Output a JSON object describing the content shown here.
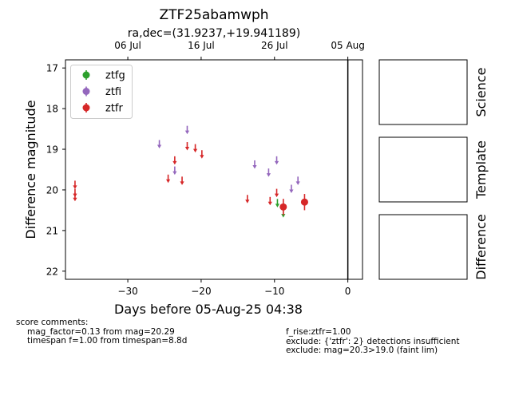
{
  "chart_data": {
    "type": "scatter",
    "title": "ZTF25abamwph",
    "subtitle": "ra,dec=(31.9237,+19.941189)",
    "xlabel": "Days before 05-Aug-25 04:38",
    "ylabel": "Difference magnitude",
    "xlim": [
      -38.5,
      2
    ],
    "ylim": [
      22.2,
      16.8
    ],
    "y_inverted": true,
    "x_ticks": [
      -30,
      -20,
      -10,
      0
    ],
    "y_ticks": [
      17,
      18,
      19,
      20,
      21,
      22
    ],
    "top_axis_ticks": [
      {
        "label": "06 Jul",
        "x": -30
      },
      {
        "label": "16 Jul",
        "x": -20
      },
      {
        "label": "26 Jul",
        "x": -10
      },
      {
        "label": "05 Aug",
        "x": 0
      }
    ],
    "vline_x": 0,
    "legend_position": "upper-left",
    "series": [
      {
        "name": "ztfg",
        "color": "#2ca02c",
        "upper_limits": [
          {
            "x": -9.6,
            "y": 20.4
          },
          {
            "x": -8.8,
            "y": 20.65
          }
        ],
        "detections": []
      },
      {
        "name": "ztfi",
        "color": "#9467bd",
        "upper_limits": [
          {
            "x": -25.7,
            "y": 18.95
          },
          {
            "x": -23.6,
            "y": 19.6
          },
          {
            "x": -21.9,
            "y": 18.6
          },
          {
            "x": -12.7,
            "y": 19.45
          },
          {
            "x": -10.8,
            "y": 19.65
          },
          {
            "x": -9.7,
            "y": 19.35
          },
          {
            "x": -7.7,
            "y": 20.05
          },
          {
            "x": -6.8,
            "y": 19.85
          }
        ],
        "detections": []
      },
      {
        "name": "ztfr",
        "color": "#d62728",
        "upper_limits": [
          {
            "x": -37.2,
            "y": 19.95
          },
          {
            "x": -37.2,
            "y": 20.15
          },
          {
            "x": -37.2,
            "y": 20.25
          },
          {
            "x": -24.5,
            "y": 19.8
          },
          {
            "x": -23.6,
            "y": 19.35
          },
          {
            "x": -22.6,
            "y": 19.85
          },
          {
            "x": -21.9,
            "y": 19.0
          },
          {
            "x": -20.8,
            "y": 19.05
          },
          {
            "x": -19.9,
            "y": 19.2
          },
          {
            "x": -13.7,
            "y": 20.3
          },
          {
            "x": -10.6,
            "y": 20.35
          },
          {
            "x": -9.7,
            "y": 20.15
          }
        ],
        "detections": [
          {
            "x": -8.8,
            "y": 20.42,
            "err": 0.2
          },
          {
            "x": -5.9,
            "y": 20.3,
            "err": 0.2
          }
        ]
      }
    ]
  },
  "panels": [
    {
      "label": "Science"
    },
    {
      "label": "Template"
    },
    {
      "label": "Difference"
    }
  ],
  "comments": {
    "header": "score comments:",
    "left": [
      "mag_factor=0.13 from mag=20.29",
      "timespan f=1.00 from timespan=8.8d"
    ],
    "right": [
      "f_rise:ztfr=1.00",
      "exclude: {'ztfr': 2} detections insufficient",
      "exclude: mag=20.3>19.0 (faint lim)"
    ]
  }
}
